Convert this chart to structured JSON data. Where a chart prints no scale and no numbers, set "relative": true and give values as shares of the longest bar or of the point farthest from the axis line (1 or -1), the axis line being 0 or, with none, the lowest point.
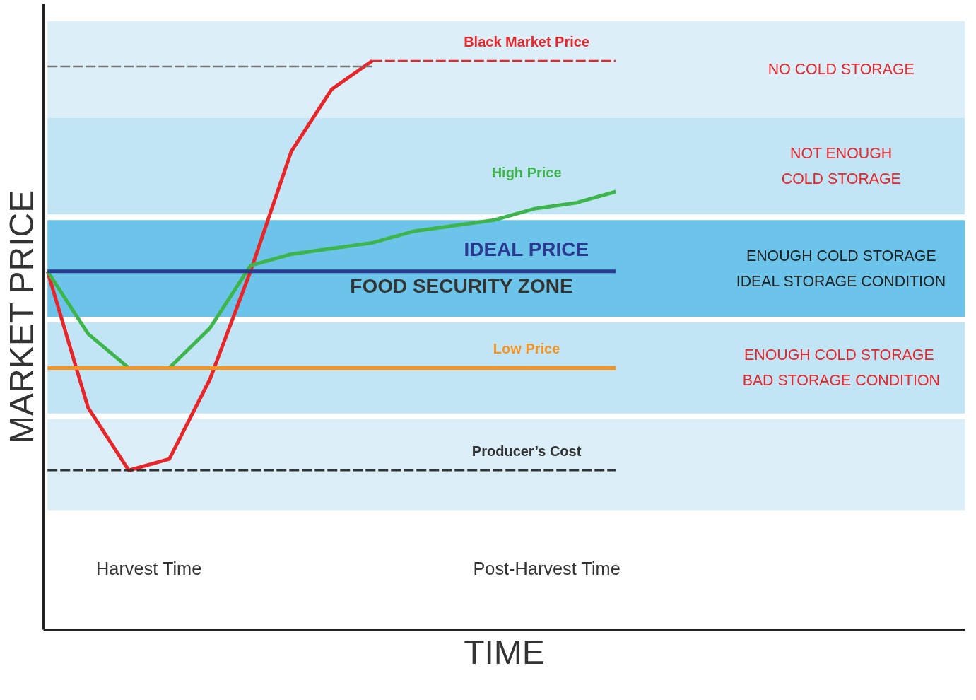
{
  "chart_data": {
    "type": "line",
    "relative": true,
    "xlabel": "TIME",
    "ylabel": "MARKET PRICE",
    "categories": [
      null,
      null,
      null,
      null,
      null,
      null,
      null,
      null,
      null,
      null,
      null,
      null,
      null,
      null,
      null
    ],
    "series": [
      {
        "color": "#e8262a",
        "values": [
          0.63,
          0.39,
          0.28,
          0.3,
          0.44,
          0.63,
          0.84,
          0.95,
          1.0,
          null,
          null,
          null,
          null,
          null,
          null
        ]
      },
      {
        "name": "Black Market Price",
        "color": "#e8262a",
        "line_style": "dashed",
        "values": [
          null,
          null,
          null,
          null,
          null,
          null,
          null,
          null,
          1.0,
          1.0,
          1.0,
          1.0,
          1.0,
          1.0,
          1.0
        ]
      },
      {
        "color": "#777777",
        "line_style": "dashed",
        "values": [
          0.99,
          0.99,
          0.99,
          0.99,
          0.99,
          0.99,
          0.99,
          0.99,
          0.99,
          null,
          null,
          null,
          null,
          null,
          null
        ]
      },
      {
        "name": "High Price",
        "color": "#3db54a",
        "values": [
          0.63,
          0.52,
          0.46,
          0.46,
          0.53,
          0.64,
          0.66,
          0.67,
          0.68,
          0.7,
          0.71,
          0.72,
          0.74,
          0.75,
          0.77
        ]
      },
      {
        "name": "IDEAL PRICE",
        "color": "#2b3990",
        "values": [
          0.63,
          0.63,
          0.63,
          0.63,
          0.63,
          0.63,
          0.63,
          0.63,
          0.63,
          0.63,
          0.63,
          0.63,
          0.63,
          0.63,
          0.63
        ]
      },
      {
        "name": "Low Price",
        "color": "#f7941d",
        "values": [
          0.46,
          0.46,
          0.46,
          0.46,
          0.46,
          0.46,
          0.46,
          0.46,
          0.46,
          0.46,
          0.46,
          0.46,
          0.46,
          0.46,
          0.46
        ]
      },
      {
        "name": "Producer’s Cost",
        "color": "#333333",
        "line_style": "dashed",
        "values": [
          0.28,
          0.28,
          0.28,
          0.28,
          0.28,
          0.28,
          0.28,
          0.28,
          0.28,
          0.28,
          0.28,
          0.28,
          0.28,
          0.28,
          0.28
        ]
      }
    ],
    "bands": [
      {
        "axis": "y",
        "from": 0.9,
        "to": 1.07,
        "label": "NO COLD STORAGE",
        "color": "#dceff9"
      },
      {
        "axis": "y",
        "from": 0.73,
        "to": 0.9,
        "label": "NOT ENOUGH\nCOLD STORAGE",
        "color": "#c2e5f6"
      },
      {
        "axis": "y",
        "from": 0.55,
        "to": 0.72,
        "label": "ENOUGH COLD STORAGE\nIDEAL STORAGE CONDITION",
        "color": "#6cc4ea"
      },
      {
        "axis": "y",
        "from": 0.38,
        "to": 0.54,
        "label": "ENOUGH  COLD STORAGE\nBAD STORAGE CONDITION",
        "color": "#c2e5f6"
      },
      {
        "axis": "y",
        "from": 0.21,
        "to": 0.37,
        "color": "#dcefF9"
      }
    ],
    "annotations": [
      "FOOD SECURITY ZONE",
      "Harvest Time",
      "Post-Harvest Time"
    ],
    "line_style": "solid"
  }
}
